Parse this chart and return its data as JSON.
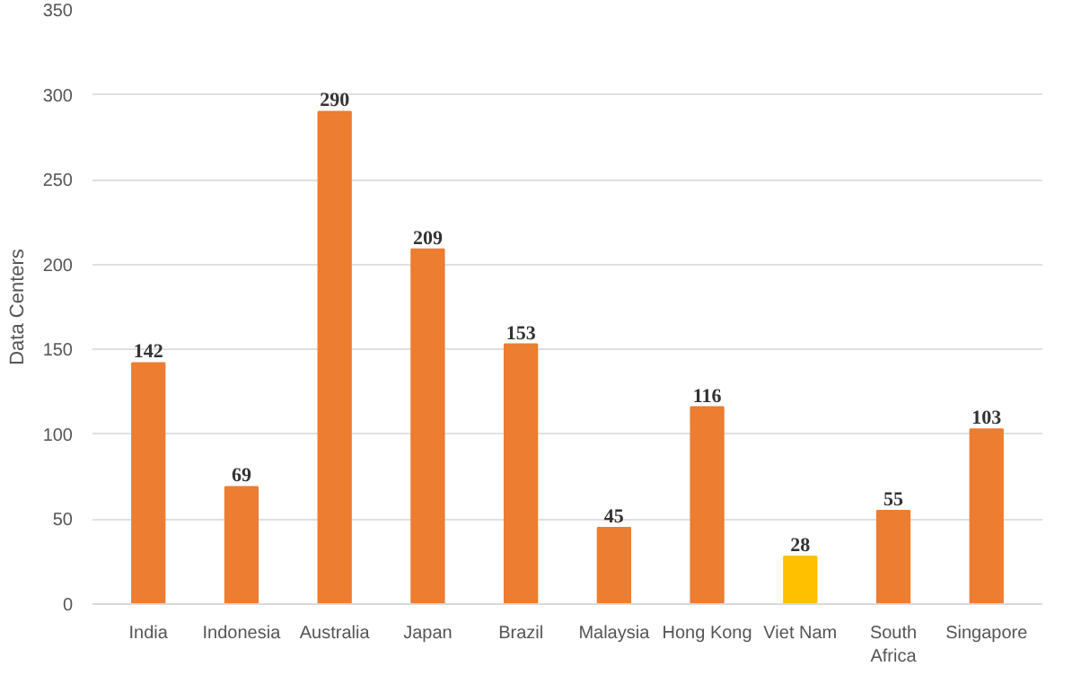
{
  "chart_data": {
    "type": "bar",
    "ylabel": "Data Centers",
    "categories": [
      "India",
      "Indonesia",
      "Australia",
      "Japan",
      "Brazil",
      "Malaysia",
      "Hong Kong",
      "Viet Nam",
      "South Africa",
      "Singapore"
    ],
    "values": [
      142,
      69,
      290,
      209,
      153,
      45,
      116,
      28,
      55,
      103
    ],
    "colors": [
      "#ed7d31",
      "#ed7d31",
      "#ed7d31",
      "#ed7d31",
      "#ed7d31",
      "#ed7d31",
      "#ed7d31",
      "#ffc000",
      "#ed7d31",
      "#ed7d31"
    ],
    "ylim": [
      0,
      350
    ],
    "yticks": [
      0,
      50,
      100,
      150,
      200,
      250,
      300,
      350
    ],
    "grid": "y",
    "data_labels": true
  }
}
